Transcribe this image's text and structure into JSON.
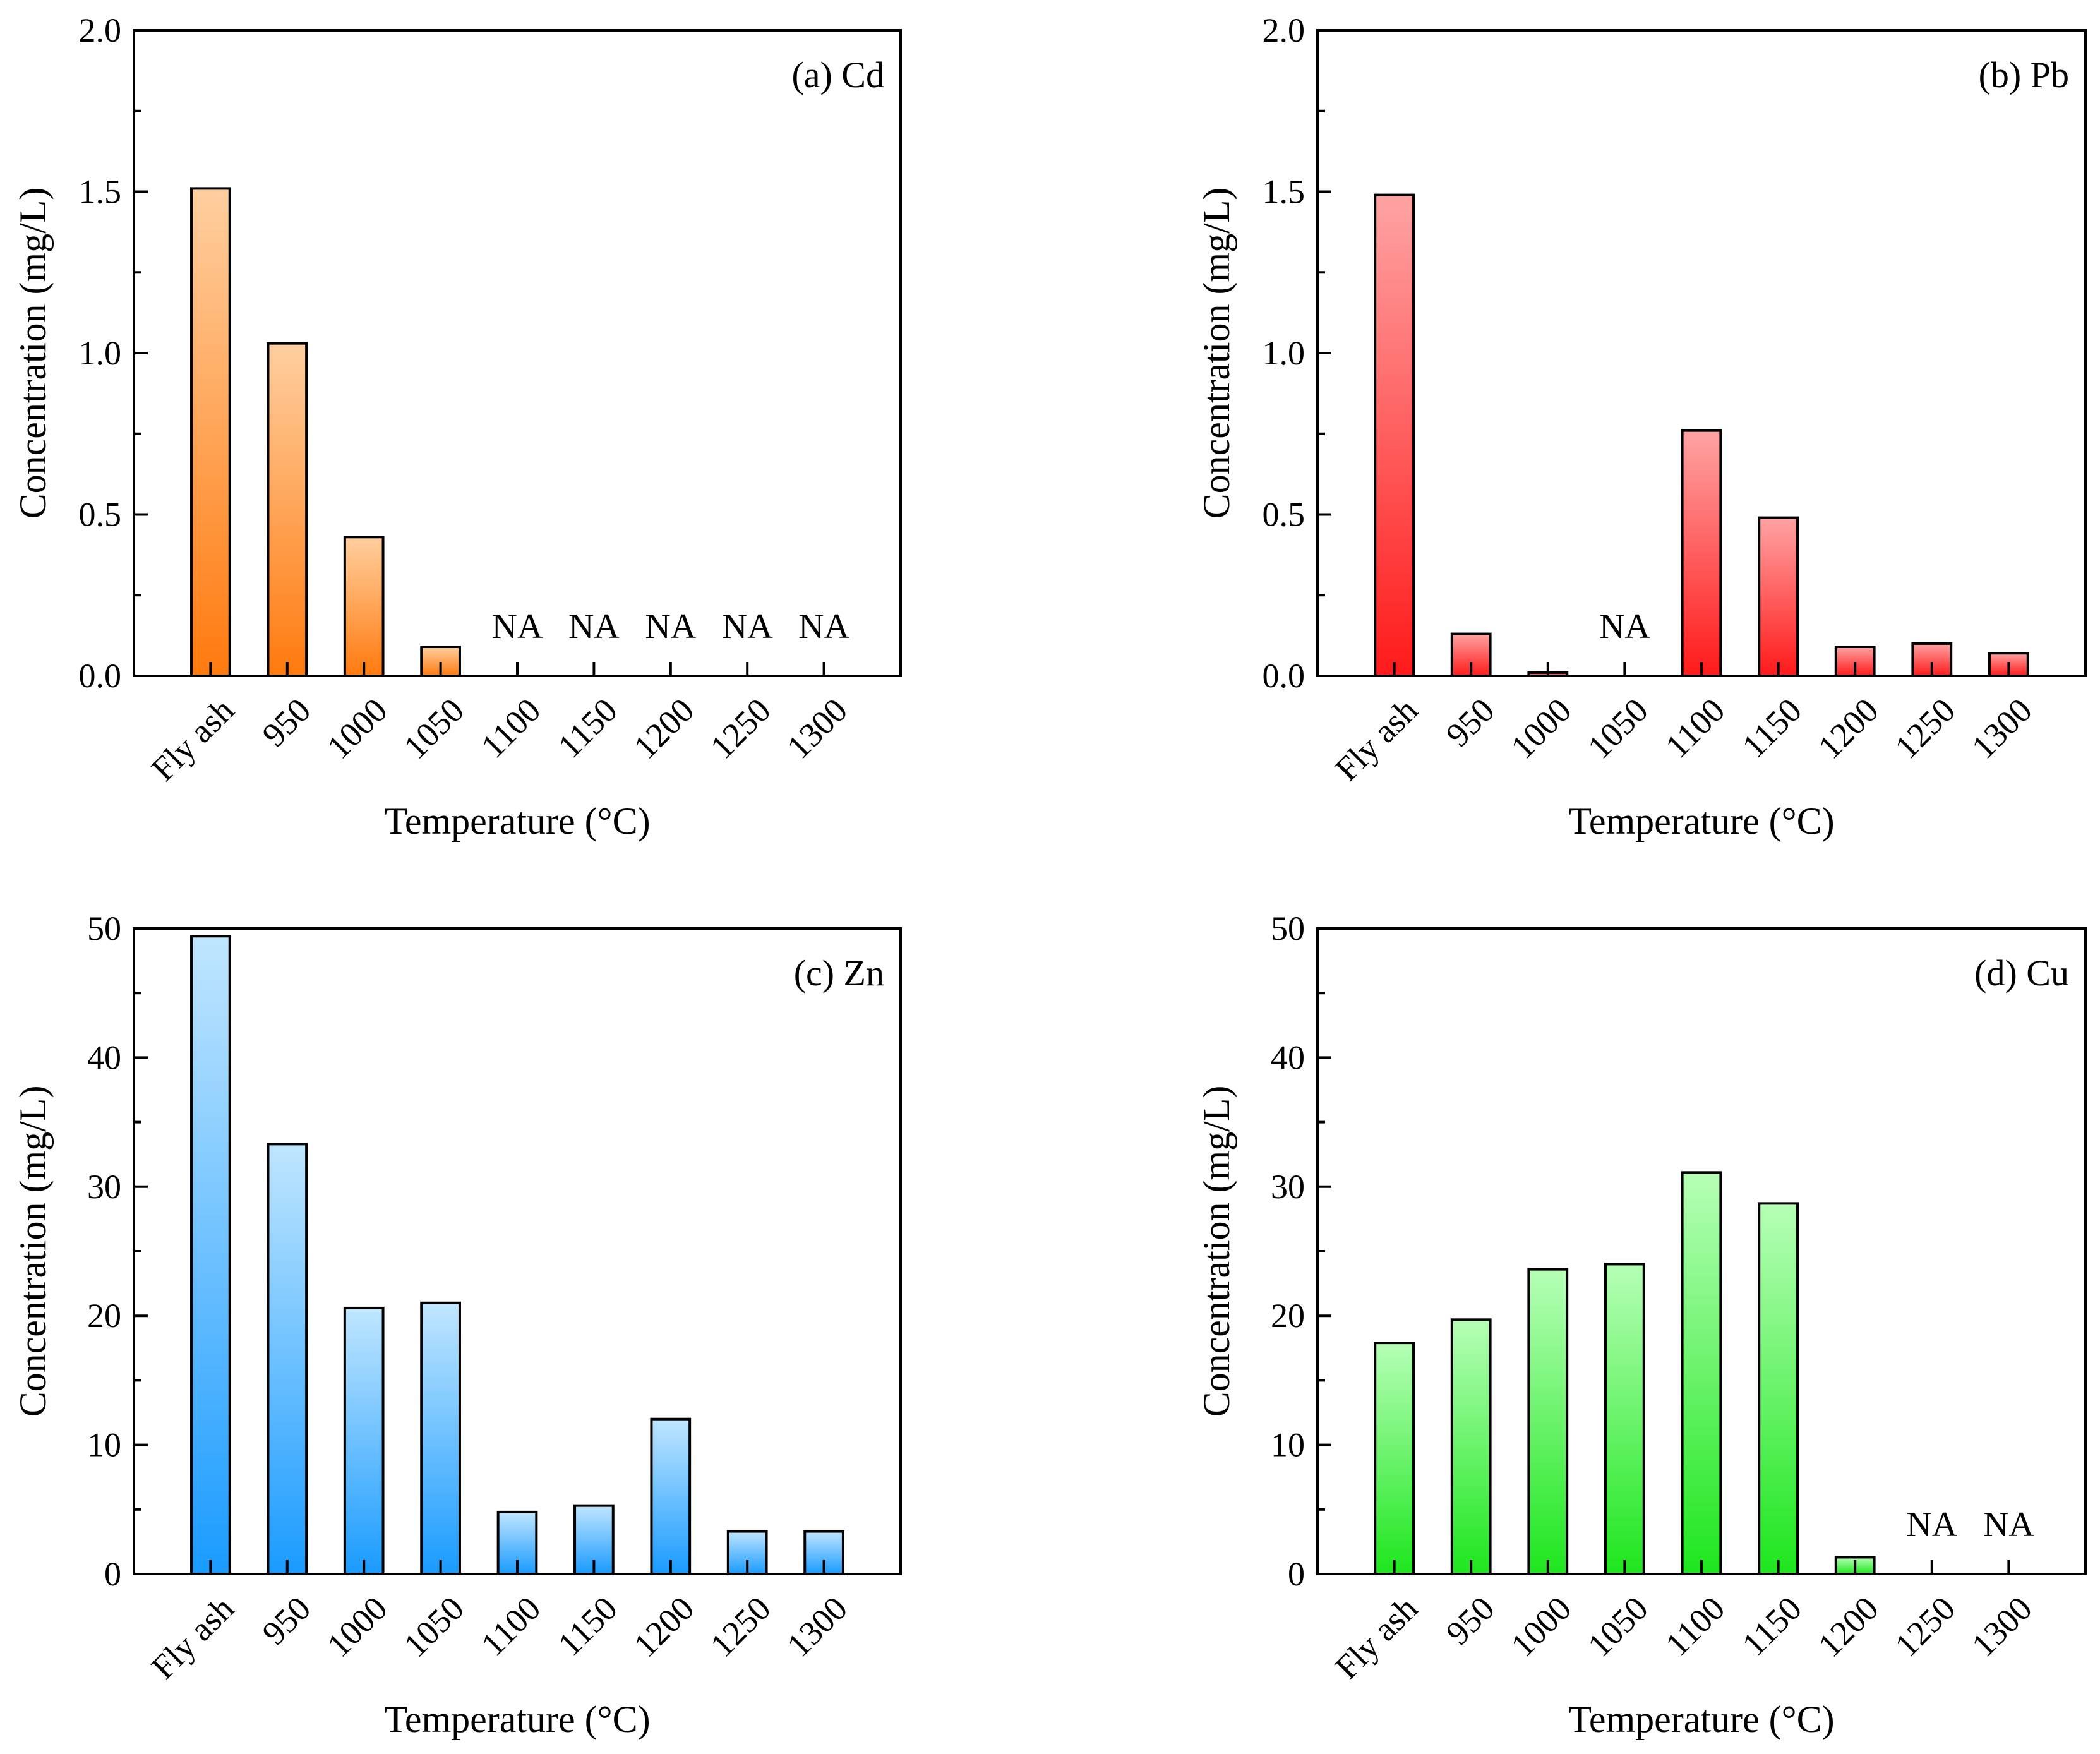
{
  "chart_data": [
    {
      "type": "bar",
      "panel_label": "(a) Cd",
      "categories": [
        "Fly ash",
        "950",
        "1000",
        "1050",
        "1100",
        "1150",
        "1200",
        "1250",
        "1300"
      ],
      "values": [
        1.51,
        1.03,
        0.43,
        0.09,
        null,
        null,
        null,
        null,
        null
      ],
      "missing_label": "NA",
      "xlabel": "Temperature (°C)",
      "ylabel": "Concentration (mg/L)",
      "ylim": [
        0,
        2.0
      ],
      "yticks": [
        "0.0",
        "0.5",
        "1.0",
        "1.5",
        "2.0"
      ],
      "color_top": "#ffcfa0",
      "color_bottom": "#ff7a0e"
    },
    {
      "type": "bar",
      "panel_label": "(b) Pb",
      "categories": [
        "Fly ash",
        "950",
        "1000",
        "1050",
        "1100",
        "1150",
        "1200",
        "1250",
        "1300"
      ],
      "values": [
        1.49,
        0.13,
        0.01,
        null,
        0.76,
        0.49,
        0.09,
        0.1,
        0.07
      ],
      "missing_label": "NA",
      "xlabel": "Temperature (°C)",
      "ylabel": "Concentration (mg/L)",
      "ylim": [
        0,
        2.0
      ],
      "yticks": [
        "0.0",
        "0.5",
        "1.0",
        "1.5",
        "2.0"
      ],
      "color_top": "#ffa3a3",
      "color_bottom": "#ff1a1a"
    },
    {
      "type": "bar",
      "panel_label": "(c) Zn",
      "categories": [
        "Fly ash",
        "950",
        "1000",
        "1050",
        "1100",
        "1150",
        "1200",
        "1250",
        "1300"
      ],
      "values": [
        49.4,
        33.3,
        20.6,
        21.0,
        4.8,
        5.3,
        12.0,
        3.3,
        3.3
      ],
      "missing_label": "NA",
      "xlabel": "Temperature (°C)",
      "ylabel": "Concentration (mg/L)",
      "ylim": [
        0,
        50
      ],
      "yticks": [
        "0",
        "10",
        "20",
        "30",
        "40",
        "50"
      ],
      "color_top": "#c0e6ff",
      "color_bottom": "#1a9bff"
    },
    {
      "type": "bar",
      "panel_label": "(d) Cu",
      "categories": [
        "Fly ash",
        "950",
        "1000",
        "1050",
        "1100",
        "1150",
        "1200",
        "1250",
        "1300"
      ],
      "values": [
        17.9,
        19.7,
        23.6,
        24.0,
        31.1,
        28.7,
        1.3,
        null,
        null
      ],
      "missing_label": "NA",
      "xlabel": "Temperature (°C)",
      "ylabel": "Concentration (mg/L)",
      "ylim": [
        0,
        50
      ],
      "yticks": [
        "0",
        "10",
        "20",
        "30",
        "40",
        "50"
      ],
      "color_top": "#b6ffb6",
      "color_bottom": "#1ee61e"
    }
  ]
}
